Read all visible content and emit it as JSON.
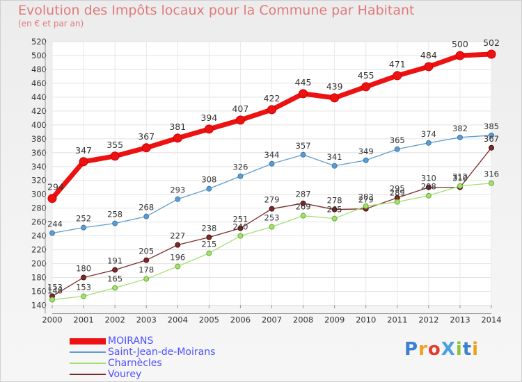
{
  "title": "Evolution des Impôts locaux pour la Commune par Habitant",
  "subtitle": "(en € et par an)",
  "logo": {
    "text": "ProXiti",
    "colors": [
      "#3a7fd0",
      "#f0a020",
      "#e33b2f",
      "#4aa0e0",
      "#8ac23e",
      "#3a7fd0",
      "#f0a020"
    ]
  },
  "chart_data": {
    "type": "line",
    "x": [
      2000,
      2001,
      2002,
      2003,
      2004,
      2005,
      2006,
      2007,
      2008,
      2009,
      2010,
      2011,
      2012,
      2013,
      2014
    ],
    "ylim": [
      140,
      520
    ],
    "yticks": [
      140,
      160,
      180,
      200,
      220,
      240,
      260,
      280,
      300,
      320,
      340,
      360,
      380,
      400,
      420,
      440,
      460,
      480,
      500,
      520
    ],
    "grid": true,
    "legend_position": "bottom-left",
    "series": [
      {
        "name": "MOIRANS",
        "color": "#ee1111",
        "values": [
          294,
          347,
          355,
          367,
          381,
          394,
          407,
          422,
          445,
          439,
          455,
          471,
          484,
          500,
          502
        ]
      },
      {
        "name": "Saint-Jean-de-Moirans",
        "color": "#5e9ccf",
        "values": [
          244,
          252,
          258,
          268,
          293,
          308,
          326,
          344,
          357,
          341,
          349,
          365,
          374,
          382,
          385
        ]
      },
      {
        "name": "Charnècles",
        "color": "#a2e070",
        "values": [
          148,
          153,
          165,
          178,
          196,
          215,
          240,
          253,
          269,
          265,
          283,
          289,
          298,
          312,
          316
        ]
      },
      {
        "name": "Vourey",
        "color": "#7a2a2a",
        "values": [
          153,
          180,
          191,
          205,
          227,
          238,
          251,
          279,
          287,
          278,
          279,
          295,
          310,
          310,
          367
        ]
      }
    ]
  }
}
